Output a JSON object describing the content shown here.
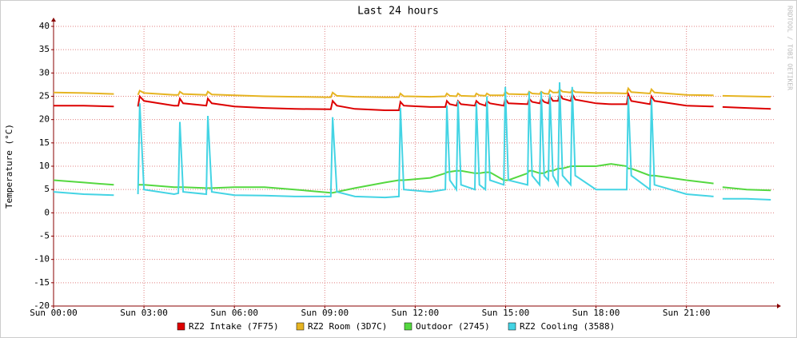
{
  "chart_data": {
    "type": "line",
    "title": "Last 24 hours",
    "y_label": "Temperature (°C)",
    "watermark": "RRDTOOL / TOBI OETIKER",
    "x": [
      0,
      1,
      2,
      2.3,
      2.8,
      2.86,
      3.0,
      4,
      4.14,
      4.19,
      4.3,
      5.07,
      5.12,
      5.25,
      6,
      7,
      8,
      9.2,
      9.26,
      9.4,
      10,
      11,
      11.46,
      11.51,
      11.62,
      12.5,
      13.0,
      13.05,
      13.15,
      13.37,
      13.42,
      13.52,
      13.98,
      14.03,
      14.13,
      14.33,
      14.38,
      14.48,
      14.94,
      14.99,
      15.09,
      15.73,
      15.78,
      15.88,
      16.13,
      16.18,
      16.28,
      16.42,
      16.47,
      16.57,
      16.74,
      16.79,
      16.89,
      17.16,
      17.21,
      17.31,
      18,
      18.5,
      19.02,
      19.07,
      19.17,
      19.79,
      19.84,
      19.94,
      21,
      21.9,
      22.0,
      22.2,
      23,
      23.8
    ],
    "xlim": [
      0,
      23.9
    ],
    "xticks": [
      {
        "value": 0,
        "label": "Sun 00:00"
      },
      {
        "value": 3,
        "label": "Sun 03:00"
      },
      {
        "value": 6,
        "label": "Sun 06:00"
      },
      {
        "value": 9,
        "label": "Sun 09:00"
      },
      {
        "value": 12,
        "label": "Sun 12:00"
      },
      {
        "value": 15,
        "label": "Sun 15:00"
      },
      {
        "value": 18,
        "label": "Sun 18:00"
      },
      {
        "value": 21,
        "label": "Sun 21:00"
      }
    ],
    "ylim": [
      -20,
      40
    ],
    "yticks": [
      -20,
      -15,
      -10,
      -5,
      0,
      5,
      10,
      15,
      20,
      25,
      30,
      35,
      40
    ],
    "grid": true,
    "series": [
      {
        "name": "RZ2 Intake (7F75)",
        "color": "#dd0000",
        "values": [
          23,
          23,
          22.8,
          null,
          22.8,
          25,
          24,
          23,
          23,
          24.5,
          23.5,
          23,
          24.5,
          23.5,
          22.8,
          22.5,
          22.3,
          22.2,
          24,
          23,
          22.3,
          22,
          22,
          23.8,
          23,
          22.7,
          22.7,
          24,
          23.3,
          23,
          24,
          23.3,
          23,
          24,
          23.4,
          23,
          24,
          23.5,
          23,
          24.5,
          23.5,
          23.3,
          24.5,
          23.8,
          23.5,
          24.5,
          23.8,
          23.5,
          25,
          24,
          24,
          25.5,
          24.5,
          24,
          25.5,
          24.3,
          23.5,
          23.3,
          23.3,
          25.5,
          24,
          23.3,
          25,
          24,
          23,
          22.8,
          null,
          22.7,
          22.5,
          22.3
        ]
      },
      {
        "name": "RZ2 Room (3D7C)",
        "color": "#e6b422",
        "values": [
          25.8,
          25.7,
          25.5,
          null,
          25.3,
          26.2,
          25.7,
          25.3,
          25.3,
          26,
          25.5,
          25.3,
          26,
          25.4,
          25.2,
          25,
          24.9,
          24.8,
          25.8,
          25.1,
          24.9,
          24.8,
          24.8,
          25.6,
          25,
          24.9,
          25,
          25.6,
          25.1,
          25,
          25.6,
          25.1,
          25,
          25.6,
          25.2,
          25.1,
          25.6,
          25.2,
          25.2,
          26,
          25.5,
          25.4,
          26,
          25.6,
          25.5,
          26,
          25.6,
          25.5,
          26.3,
          25.8,
          25.8,
          26.5,
          26,
          25.8,
          26.4,
          25.9,
          25.7,
          25.7,
          25.6,
          26.7,
          25.9,
          25.6,
          26.5,
          25.8,
          25.3,
          25.2,
          null,
          25.1,
          25,
          24.9
        ]
      },
      {
        "name": "Outdoor (2745)",
        "color": "#55d840",
        "values": [
          7,
          6.5,
          6,
          null,
          6,
          6,
          6,
          5.5,
          5.5,
          5.5,
          5.5,
          5.3,
          5.3,
          5.3,
          5.5,
          5.5,
          5,
          4.3,
          4.3,
          4.5,
          5.3,
          6.5,
          7,
          7,
          7,
          7.5,
          8.5,
          8.7,
          8.8,
          9,
          9,
          9,
          8.5,
          8.5,
          8.5,
          8.7,
          8.7,
          8.7,
          7,
          7,
          7,
          8.5,
          9,
          9,
          8.5,
          8.5,
          8.5,
          9,
          9,
          9,
          9.5,
          9.5,
          9.5,
          10,
          10,
          10,
          10,
          10.5,
          10,
          9.5,
          9.5,
          8,
          8,
          8,
          7,
          6.3,
          null,
          5.5,
          5,
          4.8
        ]
      },
      {
        "name": "RZ2 Cooling (3588)",
        "color": "#44d4e4",
        "values": [
          4.5,
          4,
          3.8,
          null,
          4,
          23.5,
          5,
          4,
          4.2,
          19.5,
          4.5,
          4,
          20.8,
          4.5,
          3.8,
          3.7,
          3.5,
          3.5,
          20.5,
          4.5,
          3.5,
          3.3,
          3.5,
          22.5,
          5,
          4.5,
          5,
          23,
          7,
          5,
          24,
          6,
          5,
          23.5,
          6,
          5,
          25,
          7,
          6,
          27,
          7,
          6,
          26,
          8,
          6,
          26,
          8,
          7,
          25.5,
          8,
          6,
          28,
          8,
          6,
          27,
          8,
          5,
          5,
          5,
          25,
          8,
          5,
          24.5,
          6,
          4,
          3.5,
          null,
          3,
          3,
          2.8
        ]
      }
    ]
  }
}
